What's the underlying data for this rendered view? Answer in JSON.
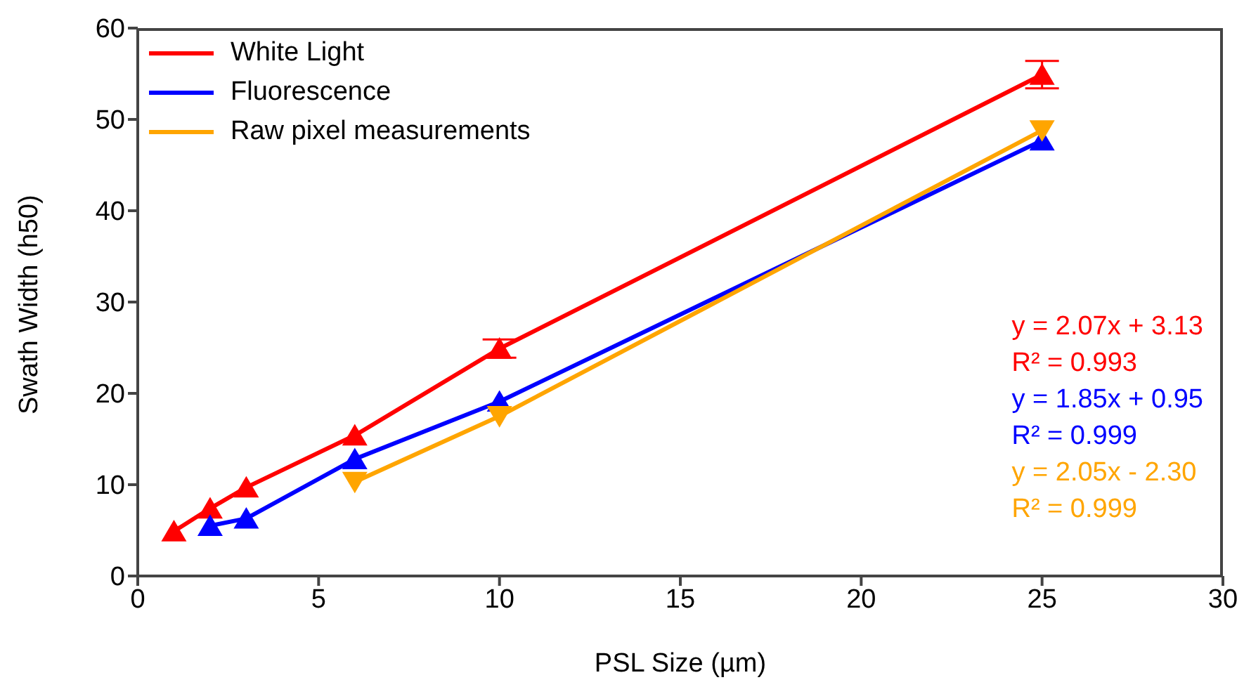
{
  "chart_data": {
    "type": "line",
    "xlabel": "PSL Size (µm)",
    "ylabel": "Swath Width (h50)",
    "xlim": [
      0,
      30
    ],
    "xticks": [
      0,
      5,
      10,
      15,
      20,
      25,
      30
    ],
    "ylim": [
      0,
      60
    ],
    "yticks": [
      0,
      10,
      20,
      30,
      40,
      50,
      60
    ],
    "legend": "top left",
    "grid": false,
    "marker": "triangle",
    "line_style": "solid",
    "series": [
      {
        "name": "White Light",
        "color": "#ff0000",
        "x": [
          1,
          2,
          3,
          6,
          10,
          25
        ],
        "values": [
          4.9,
          7.4,
          9.7,
          15.4,
          24.9,
          54.9
        ],
        "errors": [
          null,
          null,
          null,
          null,
          1,
          1.5
        ]
      },
      {
        "name": "Fluorescence",
        "color": "#0000ff",
        "x": [
          2,
          3,
          6,
          10,
          25
        ],
        "values": [
          5.5,
          6.3,
          12.8,
          19.1,
          47.7
        ]
      },
      {
        "name": "Raw pixel measurements",
        "color": "#ffa500",
        "x": [
          6,
          10,
          25
        ],
        "values": [
          10.3,
          17.5,
          48.8
        ],
        "marker": "triangle-down"
      }
    ],
    "annotations": [
      "y = 2.07x + 3.13",
      "R² = 0.993",
      "y = 1.85x + 0.95",
      "R² = 0.999",
      "y = 2.05x - 2.30",
      "R² = 0.999"
    ]
  }
}
